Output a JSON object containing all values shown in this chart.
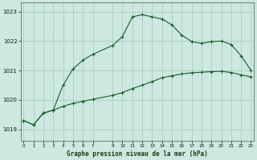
{
  "title": "Graphe pression niveau de la mer (hPa)",
  "bg_color": "#cce8e0",
  "grid_color": "#aaccc4",
  "line_color": "#1a5c2a",
  "xlim_min": -0.3,
  "xlim_max": 23.3,
  "ylim_min": 1018.6,
  "ylim_max": 1023.3,
  "yticks": [
    1019,
    1020,
    1021,
    1022,
    1023
  ],
  "xtick_positions": [
    0,
    1,
    2,
    3,
    4,
    5,
    6,
    7,
    9,
    10,
    11,
    12,
    13,
    14,
    15,
    16,
    17,
    18,
    19,
    20,
    21,
    22,
    23
  ],
  "xtick_labels": [
    "0",
    "1",
    "2",
    "3",
    "4",
    "5",
    "6",
    "7",
    "9",
    "10",
    "11",
    "12",
    "13",
    "14",
    "15",
    "16",
    "17",
    "18",
    "19",
    "20",
    "21",
    "22",
    "23"
  ],
  "series1_x": [
    0,
    1,
    2,
    3,
    4,
    5,
    6,
    7,
    9,
    10,
    11,
    12,
    13,
    14,
    15,
    16,
    17,
    18,
    19,
    20,
    21,
    22,
    23
  ],
  "series1_y": [
    1019.3,
    1019.15,
    1019.55,
    1019.65,
    1020.5,
    1021.05,
    1021.35,
    1021.55,
    1021.85,
    1022.15,
    1022.82,
    1022.9,
    1022.82,
    1022.75,
    1022.55,
    1022.2,
    1021.98,
    1021.92,
    1021.98,
    1022.0,
    1021.88,
    1021.5,
    1021.0
  ],
  "series2_x": [
    0,
    1,
    2,
    3,
    4,
    5,
    6,
    7,
    9,
    10,
    11,
    12,
    13,
    14,
    15,
    16,
    17,
    18,
    19,
    20,
    21,
    22,
    23
  ],
  "series2_y": [
    1019.3,
    1019.15,
    1019.55,
    1019.65,
    1019.78,
    1019.88,
    1019.95,
    1020.02,
    1020.15,
    1020.25,
    1020.38,
    1020.5,
    1020.62,
    1020.75,
    1020.82,
    1020.88,
    1020.92,
    1020.94,
    1020.96,
    1020.97,
    1020.93,
    1020.85,
    1020.78
  ]
}
